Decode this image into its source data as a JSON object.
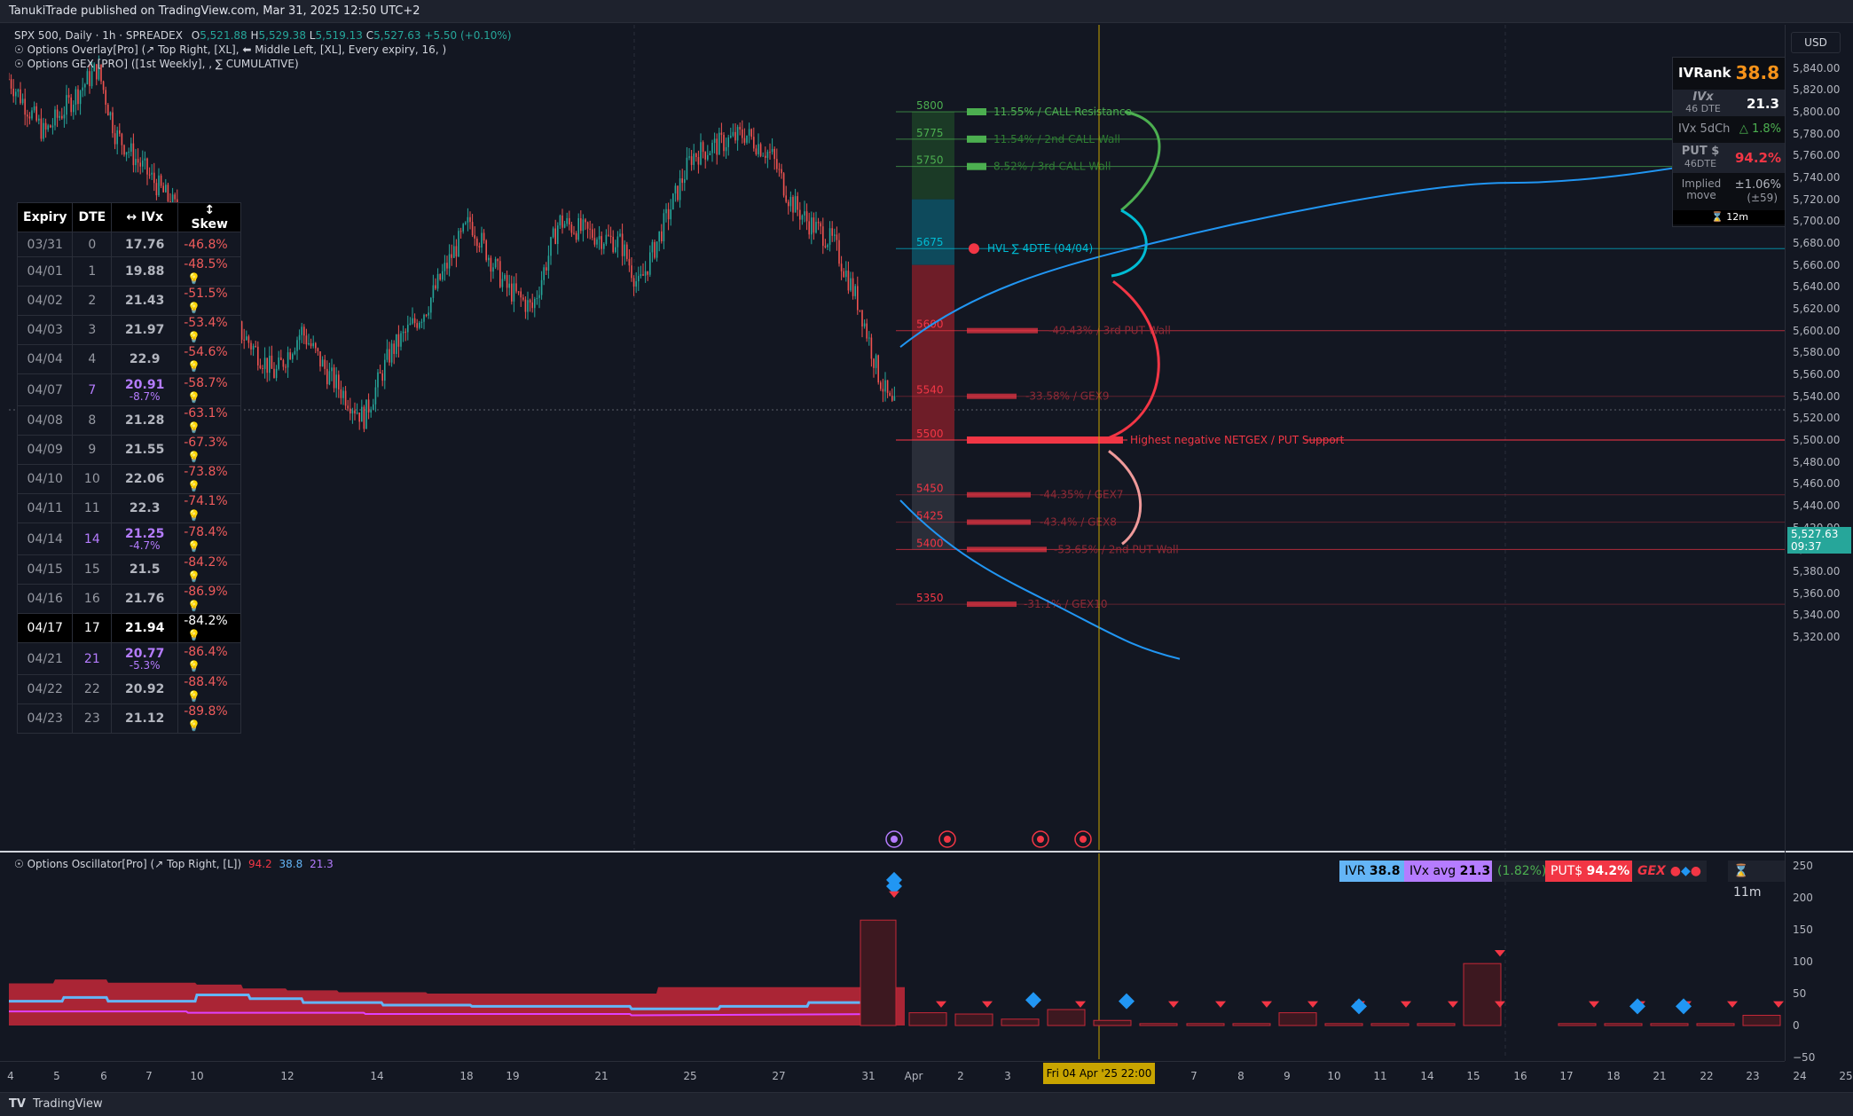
{
  "topbar": {
    "text": "TanukiTrade published on TradingView.com, Mar 31, 2025 12:50 UTC+2"
  },
  "footer": {
    "brand": "TradingView"
  },
  "legend": {
    "symbol": "SPX 500, Daily · 1h · SPREADEX",
    "o_label": "O",
    "o": "5,521.88",
    "h_label": "H",
    "h": "5,529.38",
    "l_label": "L",
    "l": "5,519.13",
    "c_label": "C",
    "c": "5,527.63",
    "change": "+5.50 (+0.10%)",
    "line2": "Options Overlay[Pro] (↗ Top Right, [XL], ⬅ Middle Left, [XL], Every expiry, 16, )",
    "line3": "Options GEX [PRO] ([1st Weekly], , ∑ CUMULATIVE)"
  },
  "expiry_table": {
    "headers": [
      "Expiry",
      "DTE",
      "↔ IVx",
      "↕ Skew"
    ],
    "rows": [
      {
        "expiry": "03/31",
        "dte": "0",
        "ivx": "17.76",
        "ivx_change": "",
        "skew": "-46.8%",
        "icon": false,
        "highlight": false
      },
      {
        "expiry": "04/01",
        "dte": "1",
        "ivx": "19.88",
        "ivx_change": "",
        "skew": "-48.5%",
        "icon": true,
        "highlight": false
      },
      {
        "expiry": "04/02",
        "dte": "2",
        "ivx": "21.43",
        "ivx_change": "",
        "skew": "-51.5%",
        "icon": true,
        "highlight": false
      },
      {
        "expiry": "04/03",
        "dte": "3",
        "ivx": "21.97",
        "ivx_change": "",
        "skew": "-53.4%",
        "icon": true,
        "highlight": false
      },
      {
        "expiry": "04/04",
        "dte": "4",
        "ivx": "22.9",
        "ivx_change": "",
        "skew": "-54.6%",
        "icon": true,
        "highlight": false
      },
      {
        "expiry": "04/07",
        "dte": "7",
        "ivx": "20.91",
        "ivx_change": "-8.7%",
        "skew": "-58.7%",
        "icon": true,
        "highlight": false
      },
      {
        "expiry": "04/08",
        "dte": "8",
        "ivx": "21.28",
        "ivx_change": "",
        "skew": "-63.1%",
        "icon": true,
        "highlight": false
      },
      {
        "expiry": "04/09",
        "dte": "9",
        "ivx": "21.55",
        "ivx_change": "",
        "skew": "-67.3%",
        "icon": true,
        "highlight": false
      },
      {
        "expiry": "04/10",
        "dte": "10",
        "ivx": "22.06",
        "ivx_change": "",
        "skew": "-73.8%",
        "icon": true,
        "highlight": false
      },
      {
        "expiry": "04/11",
        "dte": "11",
        "ivx": "22.3",
        "ivx_change": "",
        "skew": "-74.1%",
        "icon": true,
        "highlight": false
      },
      {
        "expiry": "04/14",
        "dte": "14",
        "ivx": "21.25",
        "ivx_change": "-4.7%",
        "skew": "-78.4%",
        "icon": true,
        "highlight": false
      },
      {
        "expiry": "04/15",
        "dte": "15",
        "ivx": "21.5",
        "ivx_change": "",
        "skew": "-84.2%",
        "icon": true,
        "highlight": false
      },
      {
        "expiry": "04/16",
        "dte": "16",
        "ivx": "21.76",
        "ivx_change": "",
        "skew": "-86.9%",
        "icon": true,
        "highlight": false
      },
      {
        "expiry": "04/17",
        "dte": "17",
        "ivx": "21.94",
        "ivx_change": "",
        "skew": "-84.2%",
        "icon": true,
        "highlight": true
      },
      {
        "expiry": "04/21",
        "dte": "21",
        "ivx": "20.77",
        "ivx_change": "-5.3%",
        "skew": "-86.4%",
        "icon": true,
        "highlight": false
      },
      {
        "expiry": "04/22",
        "dte": "22",
        "ivx": "20.92",
        "ivx_change": "",
        "skew": "-88.4%",
        "icon": true,
        "highlight": false
      },
      {
        "expiry": "04/23",
        "dte": "23",
        "ivx": "21.12",
        "ivx_change": "",
        "skew": "-89.8%",
        "icon": true,
        "highlight": false
      }
    ]
  },
  "ivr_box": {
    "ivr_label": "IVRank",
    "ivr_value": "38.8",
    "ivx_label": "IVx",
    "ivx_dte": "46 DTE",
    "ivx_value": "21.3",
    "ivx5d_label": "IVx 5dCh",
    "ivx5d_value": "△ 1.8%",
    "put_label": "PUT $",
    "put_dte": "46DTE",
    "put_value": "94.2%",
    "implied_label": "Implied move",
    "implied_value": "±1.06%",
    "implied_pts": "(±59)",
    "timer": "⌛ 12m"
  },
  "gex_levels": [
    {
      "strike": "5800",
      "label": "11.55% / CALL Resistance",
      "kind": "call",
      "price": 5800
    },
    {
      "strike": "5775",
      "label": "11.54% / 2nd CALL Wall",
      "kind": "call",
      "price": 5775
    },
    {
      "strike": "5750",
      "label": "8.52% / 3rd CALL Wall",
      "kind": "call",
      "price": 5750
    },
    {
      "strike": "5675",
      "label": "HVL ∑ 4DTE (04/04)",
      "kind": "hvl",
      "price": 5675
    },
    {
      "strike": "5600",
      "label": "-49.43% / 3rd PUT Wall",
      "kind": "put",
      "price": 5600
    },
    {
      "strike": "5540",
      "label": "-33.58% / GEX9",
      "kind": "put",
      "price": 5540
    },
    {
      "strike": "5500",
      "label": "Highest negative NETGEX / PUT Support",
      "kind": "support",
      "price": 5500
    },
    {
      "strike": "5450",
      "label": "-44.35% / GEX7",
      "kind": "put",
      "price": 5450
    },
    {
      "strike": "5425",
      "label": "-43.4% / GEX8",
      "kind": "put",
      "price": 5425
    },
    {
      "strike": "5400",
      "label": "-53.65% / 2nd PUT Wall",
      "kind": "put",
      "price": 5400
    },
    {
      "strike": "5350",
      "label": "-31.1% / GEX10",
      "kind": "put",
      "price": 5350
    }
  ],
  "price_axis": {
    "currency": "USD",
    "ticks": [
      "5,840.00",
      "5,820.00",
      "5,800.00",
      "5,780.00",
      "5,760.00",
      "5,740.00",
      "5,720.00",
      "5,700.00",
      "5,680.00",
      "5,660.00",
      "5,640.00",
      "5,620.00",
      "5,600.00",
      "5,580.00",
      "5,560.00",
      "5,540.00",
      "5,520.00",
      "5,500.00",
      "5,480.00",
      "5,460.00",
      "5,440.00",
      "5,420.00",
      "5,400.00",
      "5,380.00",
      "5,360.00",
      "5,340.00",
      "5,320.00"
    ],
    "current_price": "5,527.63",
    "countdown": "09:37"
  },
  "oscillator": {
    "legend_name": "Options Oscillator[Pro] (↗ Top Right, [L])",
    "legend_v1": "94.2",
    "legend_v2": "38.8",
    "legend_v3": "21.3",
    "ivr_badge": "IVR",
    "ivr_val": "38.8",
    "ivx_badge": "IVx avg",
    "ivx_val": "21.3",
    "pct_badge": "(1.82%)",
    "puts_badge": "PUT$",
    "puts_val": "94.2%",
    "gex_badge": "GEX",
    "timer": "⌛ 11m",
    "axis_ticks": [
      "250",
      "200",
      "150",
      "100",
      "50",
      "0",
      "−50"
    ]
  },
  "xaxis": {
    "labels": [
      "4",
      "5",
      "6",
      "7",
      "10",
      "12",
      "14",
      "18",
      "19",
      "21",
      "25",
      "27",
      "31",
      "Apr",
      "2",
      "3",
      "7",
      "8",
      "9",
      "10",
      "11",
      "14",
      "15",
      "16",
      "17",
      "18",
      "21",
      "22",
      "23",
      "24",
      "25"
    ],
    "crosshair": "Fri 04 Apr '25   22:00"
  },
  "colors": {
    "call": "#4caf50",
    "put": "#f23645",
    "hvl": "#00bcd4",
    "ivx_line": "#2196f3",
    "accent": "#f7931a"
  }
}
